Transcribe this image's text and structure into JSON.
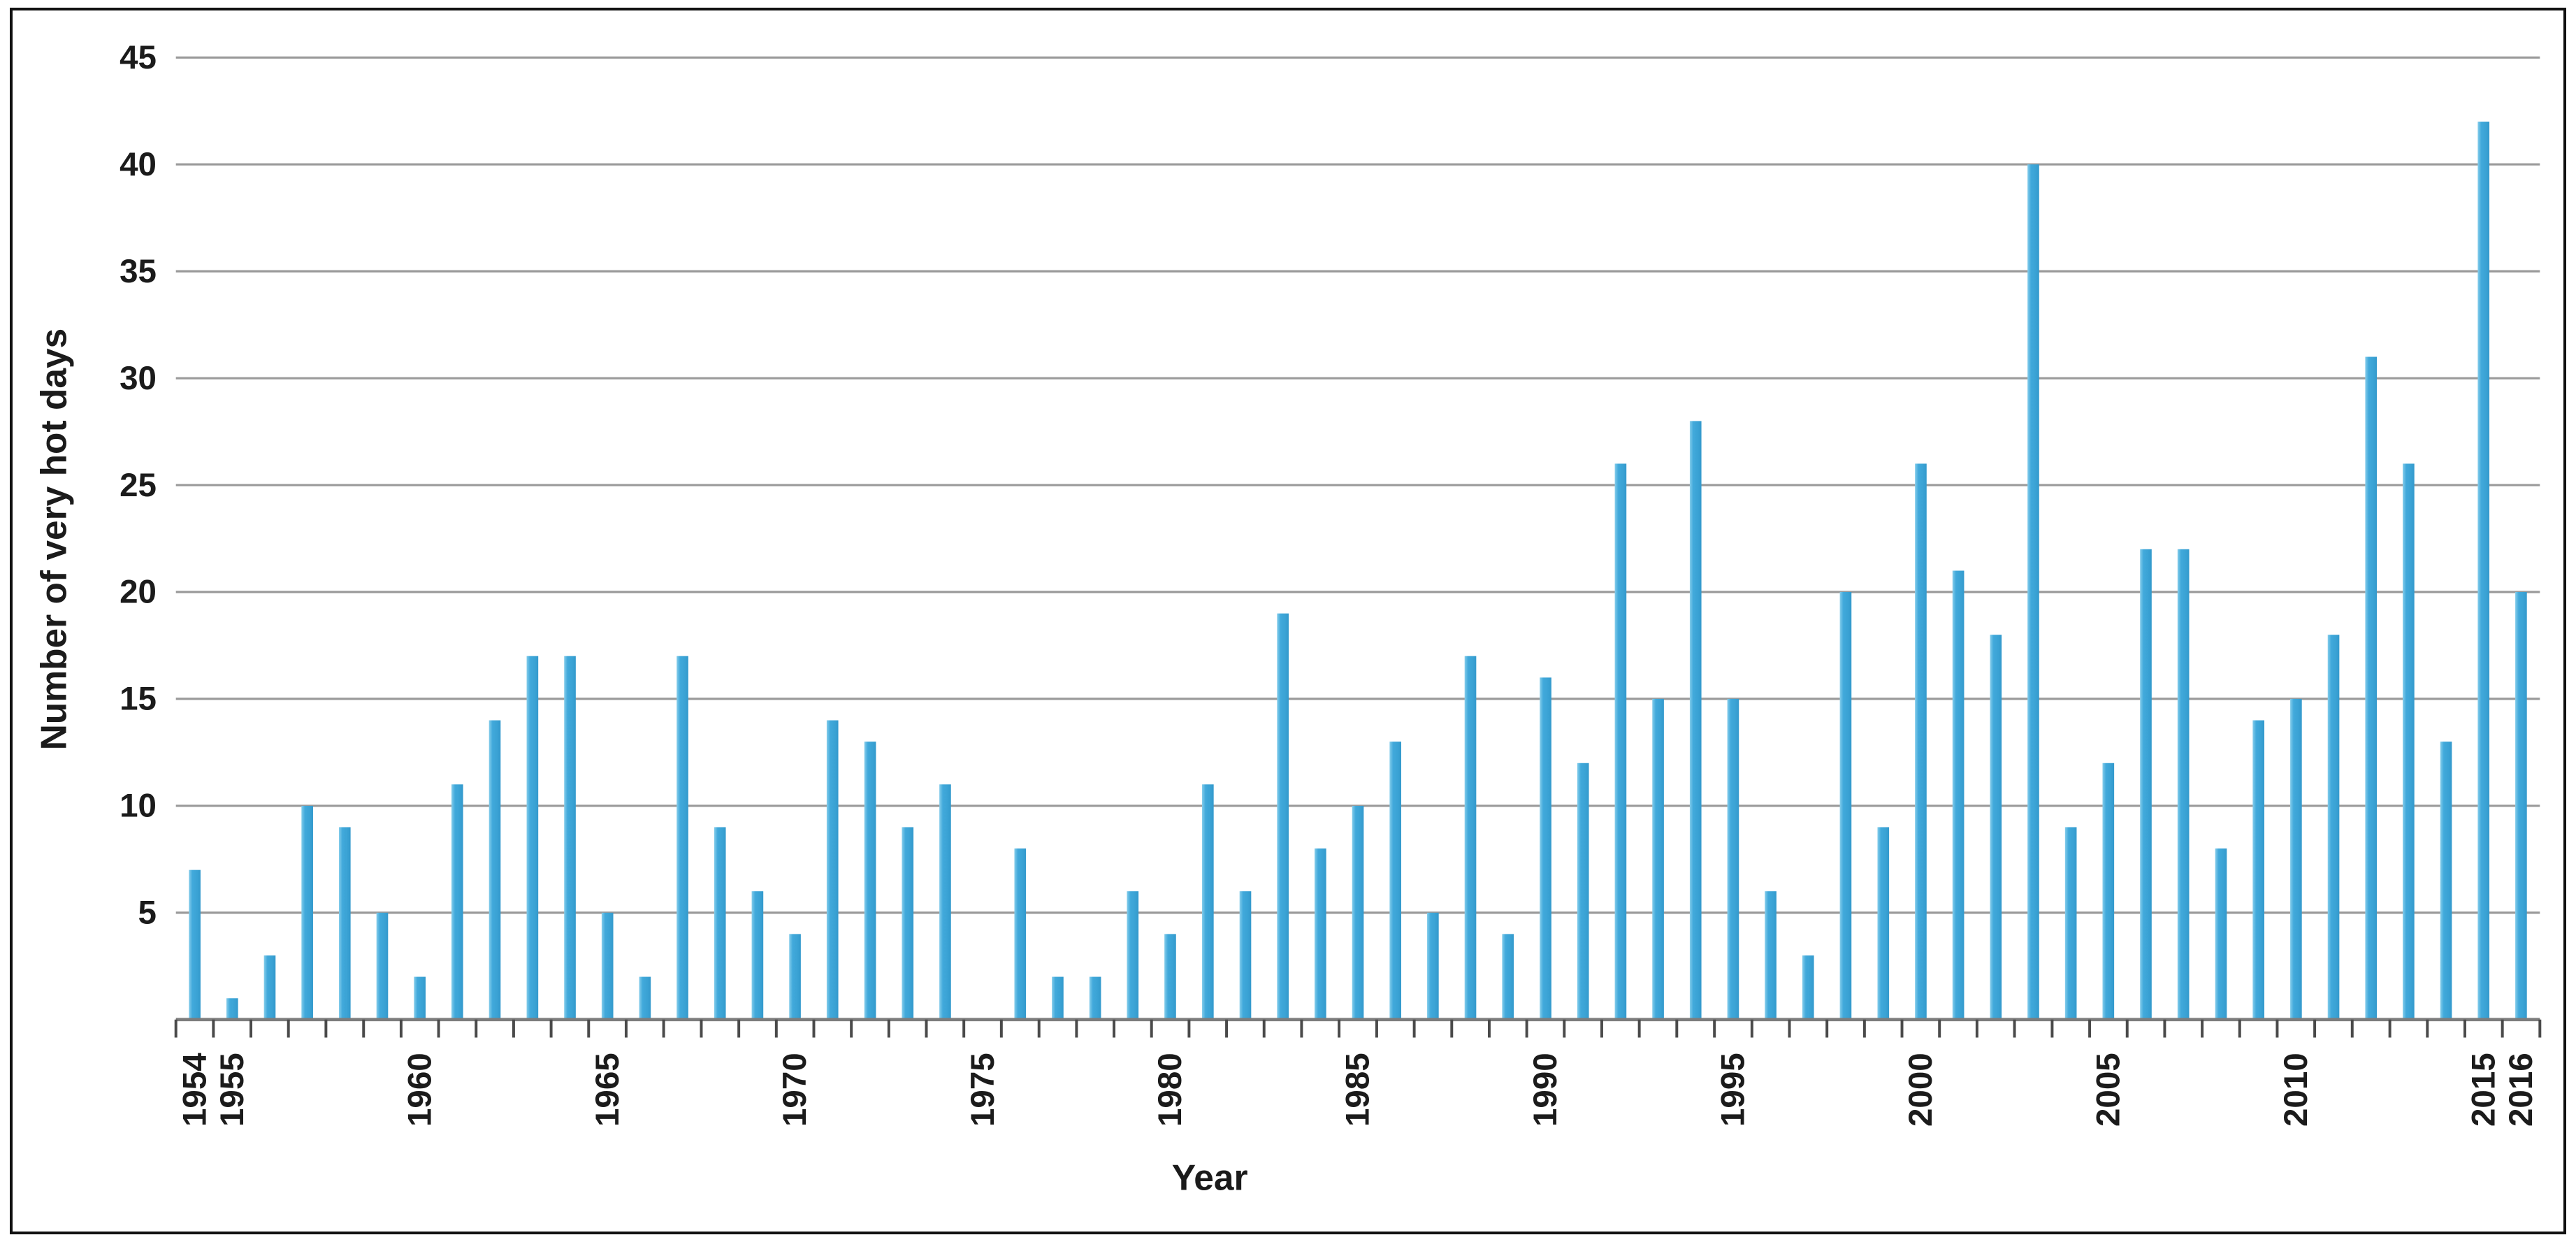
{
  "chart_data": {
    "type": "bar",
    "title": "",
    "xlabel": "Year",
    "ylabel": "Number of very hot days",
    "categories": [
      1954,
      1955,
      1956,
      1957,
      1958,
      1959,
      1960,
      1961,
      1962,
      1963,
      1964,
      1965,
      1966,
      1967,
      1968,
      1969,
      1970,
      1971,
      1972,
      1973,
      1974,
      1975,
      1976,
      1977,
      1978,
      1979,
      1980,
      1981,
      1982,
      1983,
      1984,
      1985,
      1986,
      1987,
      1988,
      1989,
      1990,
      1991,
      1992,
      1993,
      1994,
      1995,
      1996,
      1997,
      1998,
      1999,
      2000,
      2001,
      2002,
      2003,
      2004,
      2005,
      2006,
      2007,
      2008,
      2009,
      2010,
      2011,
      2012,
      2013,
      2014,
      2015,
      2016
    ],
    "values": [
      7,
      1,
      3,
      10,
      9,
      5,
      2,
      11,
      14,
      17,
      17,
      5,
      2,
      17,
      9,
      6,
      4,
      14,
      13,
      9,
      11,
      0,
      8,
      2,
      2,
      6,
      4,
      11,
      6,
      19,
      8,
      10,
      13,
      5,
      17,
      4,
      16,
      12,
      26,
      15,
      28,
      15,
      6,
      3,
      20,
      9,
      26,
      21,
      18,
      40,
      9,
      12,
      22,
      22,
      8,
      14,
      15,
      18,
      31,
      26,
      13,
      42,
      20
    ],
    "ylim": [
      0,
      45
    ],
    "yticks": [
      5,
      10,
      15,
      20,
      25,
      30,
      35,
      40,
      45
    ],
    "labeled_years": [
      1954,
      1955,
      1960,
      1965,
      1970,
      1975,
      1980,
      1985,
      1990,
      1995,
      2000,
      2005,
      2010,
      2015,
      2016
    ],
    "grid": "horizontal-only",
    "legend": "none",
    "bar_color": "#41a9db",
    "bar_highlight_color": "#85cdeb",
    "bar_shade_color": "#3399cc",
    "gridline_color": "#9a9a9a",
    "axis_color": "#7d7d7d",
    "tick_color": "#4a4a4a",
    "text_color": "#1b1b1b",
    "frame_color": "#111111"
  }
}
